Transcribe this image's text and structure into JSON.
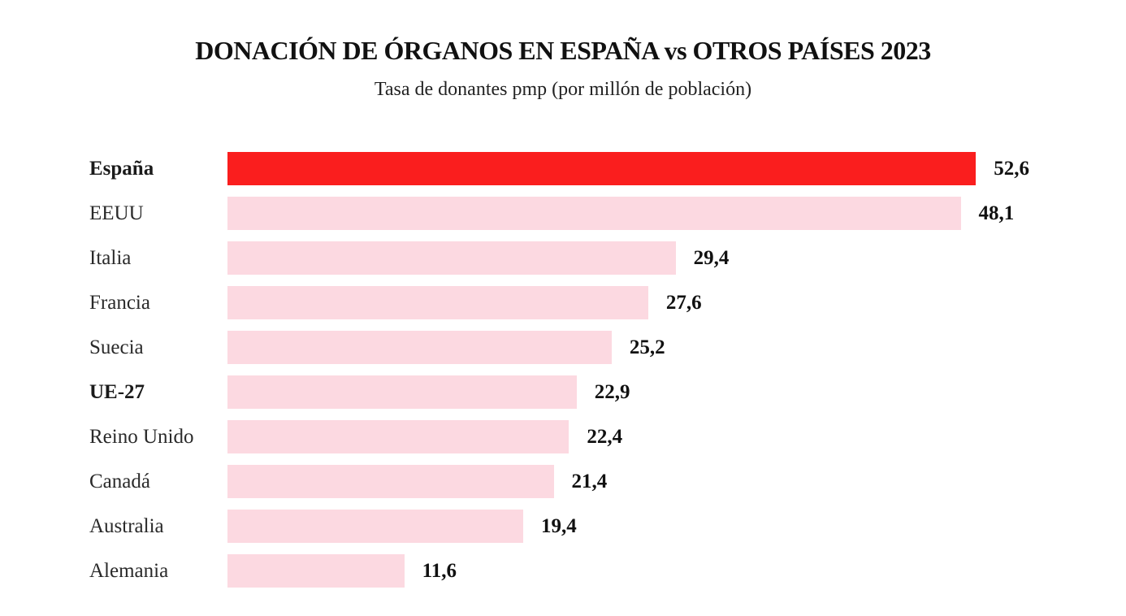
{
  "title": "DONACIÓN DE ÓRGANOS EN ESPAÑA vs OTROS PAÍSES 2023",
  "subtitle": "Tasa de donantes pmp (por millón de población)",
  "colors": {
    "highlight_bar": "#fa1e1e",
    "bar": "#fcd9e1",
    "text": "#1d1d1b"
  },
  "chart_data": {
    "type": "bar",
    "orientation": "horizontal",
    "title": "DONACIÓN DE ÓRGANOS EN ESPAÑA vs OTROS PAÍSES 2023",
    "subtitle": "Tasa de donantes pmp (por millón de población)",
    "xlabel": "",
    "ylabel": "",
    "categories": [
      "España",
      "EEUU",
      "Italia",
      "Francia",
      "Suecia",
      "UE-27",
      "Reino Unido",
      "Canadá",
      "Australia",
      "Alemania"
    ],
    "values": [
      52.6,
      48.1,
      29.4,
      27.6,
      25.2,
      22.9,
      22.4,
      21.4,
      19.4,
      11.6
    ],
    "value_labels": [
      "52,6",
      "48,1",
      "29,4",
      "27,6",
      "25,2",
      "22,9",
      "22,4",
      "21,4",
      "19,4",
      "11,6"
    ],
    "highlighted_category": "España",
    "bold_categories": [
      "España",
      "UE-27"
    ],
    "xlim": [
      0,
      52.6
    ],
    "grid": false,
    "legend": false
  }
}
